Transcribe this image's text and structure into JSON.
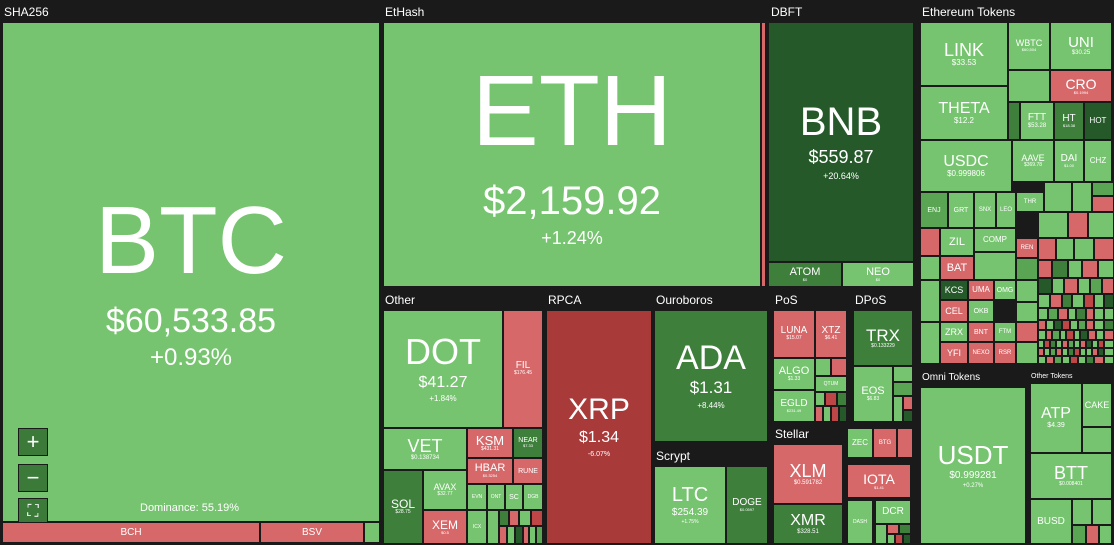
{
  "sections": {
    "sha256": "SHA256",
    "ethash": "EtHash",
    "dbft": "DBFT",
    "eth_tokens": "Ethereum Tokens",
    "other": "Other",
    "rpca": "RPCA",
    "ouroboros": "Ouroboros",
    "pos": "PoS",
    "dpos": "DPoS",
    "stellar": "Stellar",
    "scrypt": "Scrypt",
    "omni": "Omni Tokens",
    "other_tokens": "Other Tokens"
  },
  "coins": {
    "btc": {
      "symbol": "BTC",
      "price": "$60,533.85",
      "change": "+0.93%"
    },
    "bch": {
      "symbol": "BCH"
    },
    "bsv": {
      "symbol": "BSV"
    },
    "eth": {
      "symbol": "ETH",
      "price": "$2,159.92",
      "change": "+1.24%"
    },
    "bnb": {
      "symbol": "BNB",
      "price": "$559.87",
      "change": "+20.64%"
    },
    "atom": {
      "symbol": "ATOM",
      "price": "$0"
    },
    "neo": {
      "symbol": "NEO",
      "price": "$0"
    },
    "link": {
      "symbol": "LINK",
      "price": "$33.53"
    },
    "wbtc": {
      "symbol": "WBTC",
      "price": "$60,504"
    },
    "uni": {
      "symbol": "UNI",
      "price": "$30.25"
    },
    "cro": {
      "symbol": "CRO",
      "price": "$0.1994"
    },
    "theta": {
      "symbol": "THETA",
      "price": "$12.2"
    },
    "ftt": {
      "symbol": "FTT",
      "price": "$53.28"
    },
    "ht": {
      "symbol": "HT",
      "price": "$18.38"
    },
    "hot": {
      "symbol": "HOT"
    },
    "usdc": {
      "symbol": "USDC",
      "price": "$0.999806"
    },
    "aave": {
      "symbol": "AAVE",
      "price": "$369.78"
    },
    "dai": {
      "symbol": "DAI",
      "price": "$1.00"
    },
    "chz": {
      "symbol": "CHZ"
    },
    "enj": {
      "symbol": "ENJ"
    },
    "grt": {
      "symbol": "GRT"
    },
    "snx": {
      "symbol": "SNX"
    },
    "leo": {
      "symbol": "LEO"
    },
    "thr": {
      "symbol": "THR"
    },
    "zil": {
      "symbol": "ZIL"
    },
    "comp": {
      "symbol": "COMP"
    },
    "ren": {
      "symbol": "REN"
    },
    "bat": {
      "symbol": "BAT"
    },
    "kcs": {
      "symbol": "KCS"
    },
    "uma": {
      "symbol": "UMA"
    },
    "omg": {
      "symbol": "OMG"
    },
    "cel": {
      "symbol": "CEL"
    },
    "okb": {
      "symbol": "OKB"
    },
    "zrx": {
      "symbol": "ZRX"
    },
    "bnt": {
      "symbol": "BNT"
    },
    "ftm": {
      "symbol": "FTM"
    },
    "yfi": {
      "symbol": "YFI"
    },
    "nexo": {
      "symbol": "NEXO"
    },
    "rsr": {
      "symbol": "RSR"
    },
    "dot": {
      "symbol": "DOT",
      "price": "$41.27",
      "change": "+1.84%"
    },
    "fil": {
      "symbol": "FIL",
      "price": "$176.45"
    },
    "vet": {
      "symbol": "VET",
      "price": "$0.138734"
    },
    "ksm": {
      "symbol": "KSM",
      "price": "$431.31"
    },
    "near": {
      "symbol": "NEAR",
      "price": "$7.33"
    },
    "hbar": {
      "symbol": "HBAR",
      "price": "$0.3254"
    },
    "rune": {
      "symbol": "RUNE"
    },
    "sol": {
      "symbol": "SOL",
      "price": "$28.75"
    },
    "avax": {
      "symbol": "AVAX",
      "price": "$32.77"
    },
    "xem": {
      "symbol": "XEM",
      "price": "$0.5"
    },
    "evn": {
      "symbol": "EVN"
    },
    "ont": {
      "symbol": "ONT"
    },
    "sc": {
      "symbol": "SC"
    },
    "dgb": {
      "symbol": "DGB"
    },
    "icx": {
      "symbol": "ICX"
    },
    "xrp": {
      "symbol": "XRP",
      "price": "$1.34",
      "change": "-6.07%"
    },
    "ada": {
      "symbol": "ADA",
      "price": "$1.31",
      "change": "+8.44%"
    },
    "ltc": {
      "symbol": "LTC",
      "price": "$254.39",
      "change": "+1.75%"
    },
    "doge": {
      "symbol": "DOGE",
      "price": "$0.0597"
    },
    "luna": {
      "symbol": "LUNA",
      "price": "$15.07"
    },
    "xtz": {
      "symbol": "XTZ",
      "price": "$6.41"
    },
    "algo": {
      "symbol": "ALGO",
      "price": "$1.33"
    },
    "qtum": {
      "symbol": "QTUM"
    },
    "egld": {
      "symbol": "EGLD",
      "price": "$231.49"
    },
    "trx": {
      "symbol": "TRX",
      "price": "$0.133229"
    },
    "eos": {
      "symbol": "EOS",
      "price": "$6.83"
    },
    "xlm": {
      "symbol": "XLM",
      "price": "$0.591782"
    },
    "xmr": {
      "symbol": "XMR",
      "price": "$328.51"
    },
    "zec": {
      "symbol": "ZEC"
    },
    "btg": {
      "symbol": "BTG"
    },
    "iota": {
      "symbol": "IOTA",
      "price": "$1.41"
    },
    "dash": {
      "symbol": "DASH"
    },
    "dcr": {
      "symbol": "DCR"
    },
    "usdt": {
      "symbol": "USDT",
      "price": "$0.999281",
      "change": "+0.27%"
    },
    "atp": {
      "symbol": "ATP",
      "price": "$4.39"
    },
    "cake": {
      "symbol": "CAKE"
    },
    "btt": {
      "symbol": "BTT",
      "price": "$0.008401"
    },
    "busd": {
      "symbol": "BUSD"
    }
  },
  "dominance": "Dominance: 55.19%",
  "controls": {
    "zoom_in": "+",
    "zoom_out": "−",
    "fullscreen": "⛶"
  },
  "colors": {
    "green_light": "#76c46f",
    "green_mid": "#5aa554",
    "green_dark": "#3e7f3b",
    "green_darkest": "#26592a",
    "red_light": "#d7686a",
    "red_mid": "#bf4646",
    "red_dark": "#a83a3a",
    "background": "#1a1a1a"
  }
}
